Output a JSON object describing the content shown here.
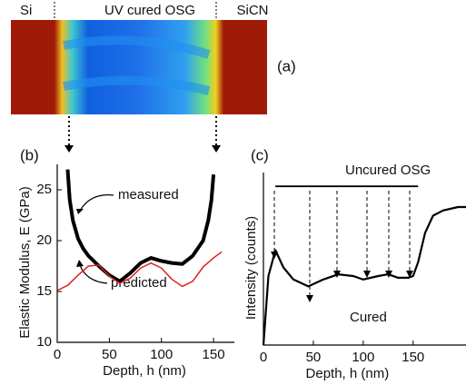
{
  "image_panel": {
    "labels": [
      "Si",
      "UV cured OSG",
      "SiCN"
    ],
    "tag": "(a)"
  },
  "chart_data": [
    {
      "type": "line",
      "tag": "(b)",
      "x_label": "Depth, h (nm)",
      "y_label": "Elastic Modulus, E (GPa)",
      "annotations": [
        "measured",
        "predicted"
      ],
      "xlim": [
        0,
        170
      ],
      "ylim": [
        10,
        27.5
      ],
      "xticks": [
        0,
        50,
        100,
        150
      ],
      "yticks": [
        10,
        15,
        20,
        25
      ],
      "series": [
        {
          "name": "measured",
          "color": "#000000",
          "width": 4,
          "x": [
            10,
            12,
            15,
            20,
            25,
            30,
            40,
            50,
            60,
            70,
            80,
            90,
            100,
            110,
            120,
            130,
            140,
            145,
            148,
            150
          ],
          "values": [
            27,
            24,
            22,
            20.2,
            19.2,
            18.5,
            17.5,
            16.6,
            16,
            16.8,
            17.8,
            18.3,
            18,
            17.8,
            17.7,
            18.5,
            20,
            22,
            24,
            26.5
          ]
        },
        {
          "name": "predicted",
          "color": "#e02020",
          "width": 1.5,
          "x": [
            0,
            10,
            20,
            30,
            40,
            50,
            60,
            70,
            80,
            90,
            100,
            110,
            120,
            130,
            140,
            150,
            158
          ],
          "values": [
            15.1,
            15.6,
            16.6,
            17.5,
            17.6,
            16.5,
            15.8,
            16.3,
            17.3,
            17.8,
            17.3,
            16.2,
            15.5,
            16,
            17.4,
            18.3,
            18.9
          ]
        }
      ]
    },
    {
      "type": "line",
      "tag": "(c)",
      "x_label": "Depth, h (nm)",
      "y_label": "Intensity (counts)",
      "annotations": [
        "Uncured OSG",
        "Cured"
      ],
      "xlim": [
        0,
        203
      ],
      "ylim": [
        0,
        100
      ],
      "xticks": [
        0,
        50,
        100,
        150
      ],
      "series": [
        {
          "name": "Cured",
          "color": "#000000",
          "width": 2.2,
          "x": [
            0,
            5,
            12,
            20,
            30,
            45,
            60,
            75,
            90,
            100,
            115,
            125,
            135,
            145,
            150,
            155,
            162,
            170,
            180,
            195,
            203
          ],
          "values": [
            0,
            40,
            55,
            45,
            38,
            34,
            38,
            41,
            40,
            38,
            40,
            41,
            39,
            39,
            40,
            48,
            65,
            75,
            78,
            80,
            80
          ]
        },
        {
          "name": "Uncured OSG",
          "color": "#000000",
          "width": 1.8,
          "x": [
            12,
            155
          ],
          "values": [
            92,
            92
          ]
        }
      ]
    }
  ]
}
